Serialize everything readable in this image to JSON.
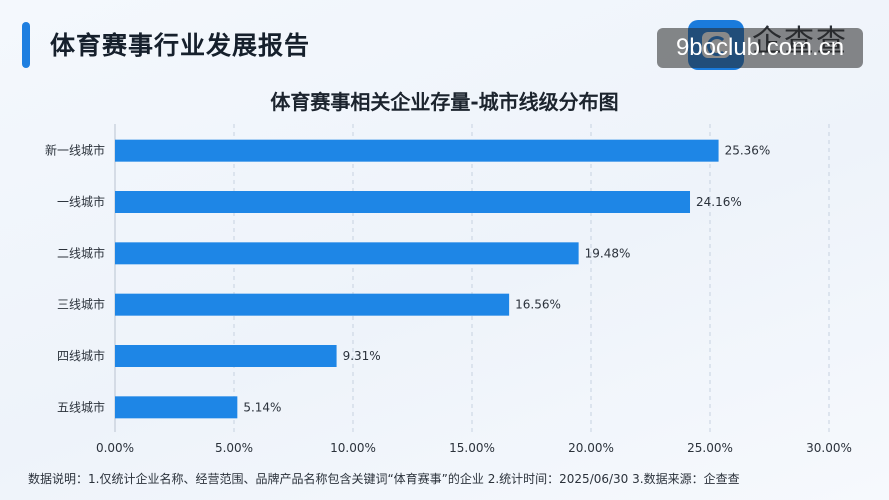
{
  "header": {
    "title": "体育赛事行业发展报告",
    "logo_text": "企查查",
    "logo_icon": "qichacha-logo-icon",
    "watermark": "9boclub.com.cn"
  },
  "footnote": "数据说明：1.仅统计企业名称、经营范围、品牌产品名称包含关键词“体育赛事”的企业    2.统计时间：2025/06/30    3.数据来源：企查查",
  "colors": {
    "bar": "#1e86e6",
    "accent": "#1e7fe0",
    "grid": "#c7d2e0"
  },
  "chart_data": {
    "type": "bar",
    "orientation": "horizontal",
    "title": "体育赛事相关企业存量-城市线级分布图",
    "categories": [
      "新一线城市",
      "一线城市",
      "二线城市",
      "三线城市",
      "四线城市",
      "五线城市"
    ],
    "values": [
      25.36,
      24.16,
      19.48,
      16.56,
      9.31,
      5.14
    ],
    "value_labels": [
      "25.36%",
      "24.16%",
      "19.48%",
      "16.56%",
      "9.31%",
      "5.14%"
    ],
    "xlim": [
      0,
      30
    ],
    "x_ticks": [
      0,
      5,
      10,
      15,
      20,
      25,
      30
    ],
    "x_tick_labels": [
      "0.00%",
      "5.00%",
      "10.00%",
      "15.00%",
      "20.00%",
      "25.00%",
      "30.00%"
    ],
    "grid": true,
    "grid_style": "dashed-vertical"
  }
}
